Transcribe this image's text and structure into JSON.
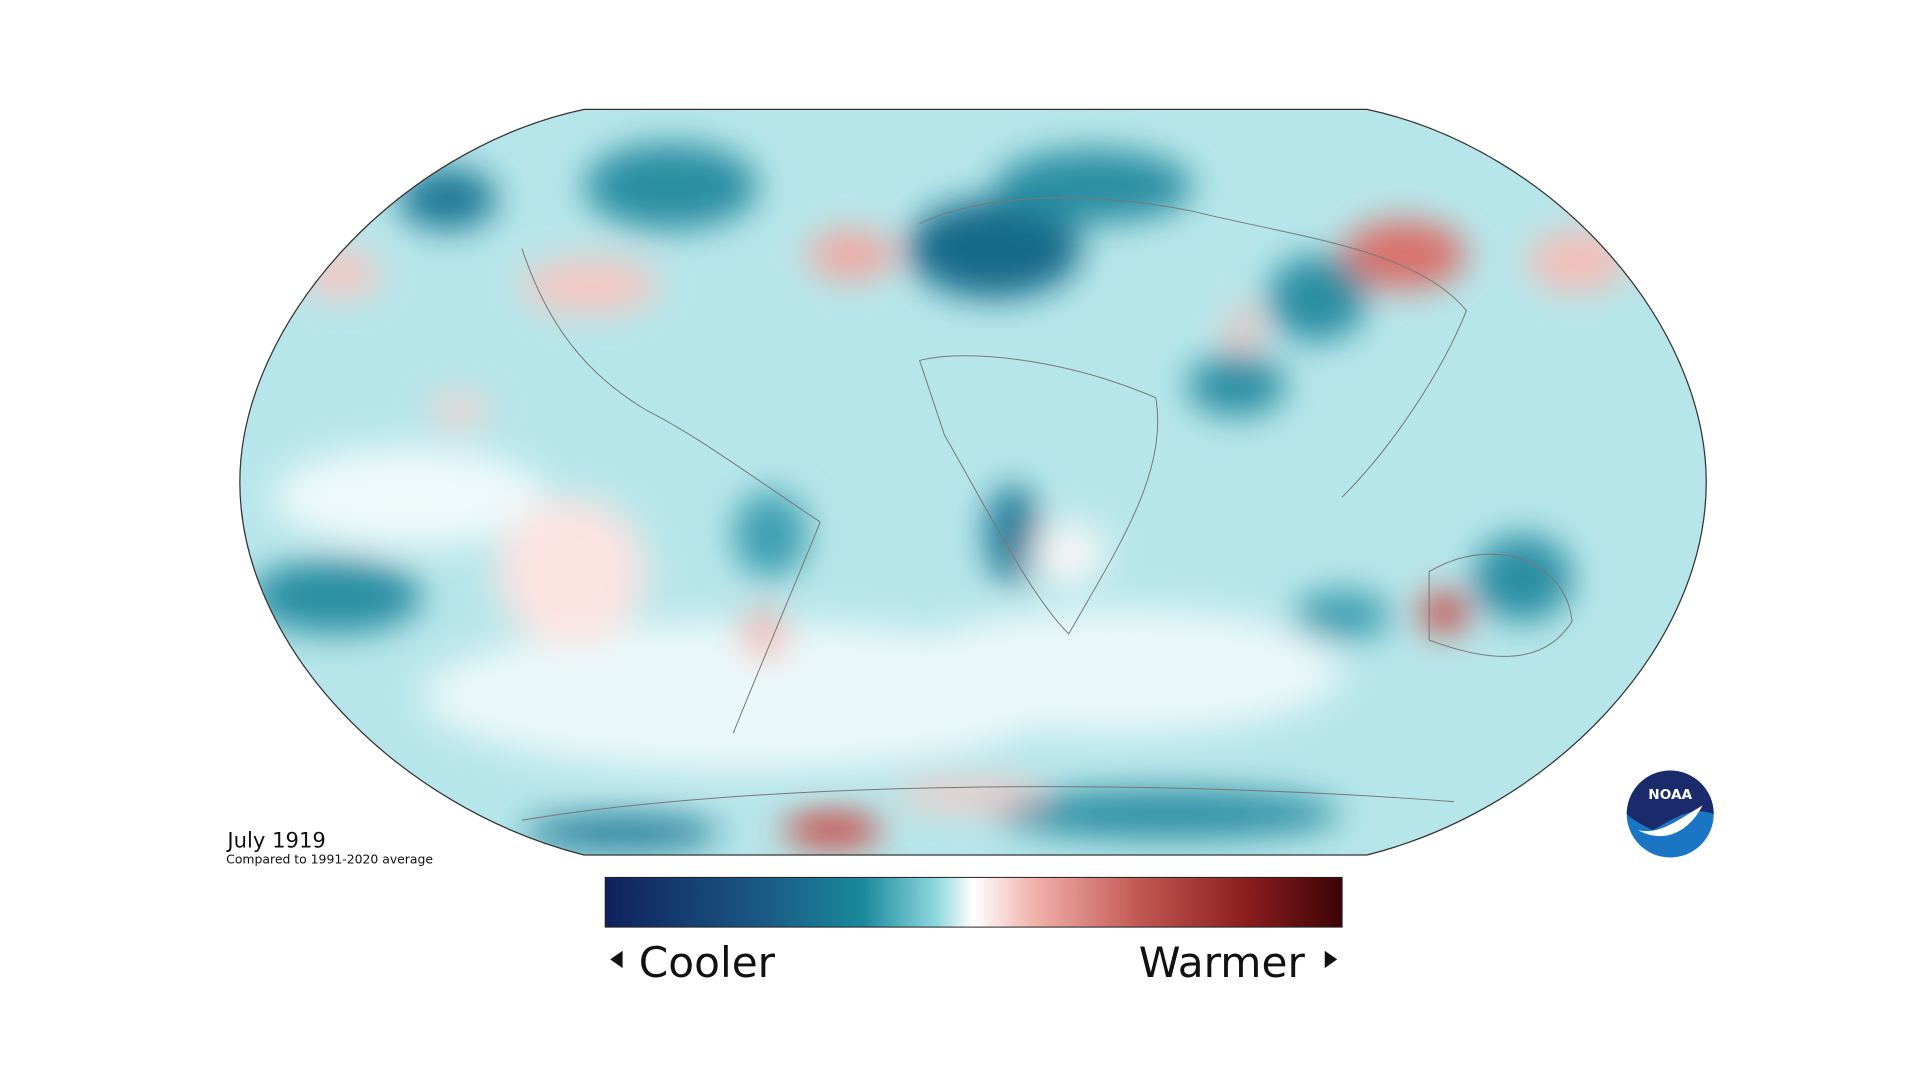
{
  "title": "July 1919",
  "subtitle": "Compared to 1991-2020 average",
  "legend": {
    "low_label": "Cooler",
    "high_label": "Warmer"
  },
  "logo": "NOAA"
}
